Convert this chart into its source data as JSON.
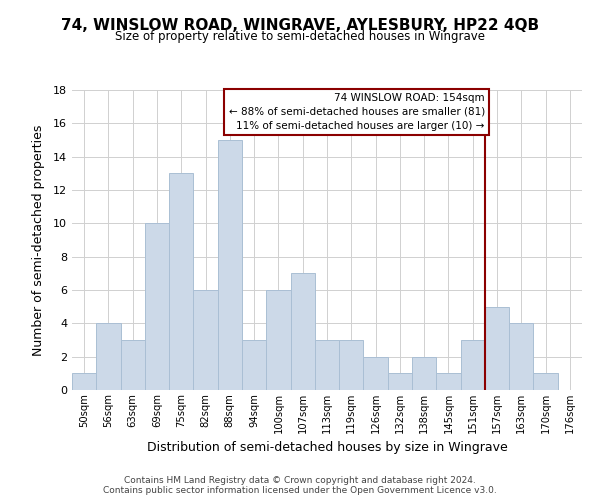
{
  "title": "74, WINSLOW ROAD, WINGRAVE, AYLESBURY, HP22 4QB",
  "subtitle": "Size of property relative to semi-detached houses in Wingrave",
  "xlabel": "Distribution of semi-detached houses by size in Wingrave",
  "ylabel": "Number of semi-detached properties",
  "bar_color": "#ccd9e8",
  "bar_edge_color": "#aabfd4",
  "bins": [
    "50sqm",
    "56sqm",
    "63sqm",
    "69sqm",
    "75sqm",
    "82sqm",
    "88sqm",
    "94sqm",
    "100sqm",
    "107sqm",
    "113sqm",
    "119sqm",
    "126sqm",
    "132sqm",
    "138sqm",
    "145sqm",
    "151sqm",
    "157sqm",
    "163sqm",
    "170sqm",
    "176sqm"
  ],
  "values": [
    1,
    4,
    3,
    10,
    13,
    6,
    15,
    3,
    6,
    7,
    3,
    3,
    2,
    1,
    2,
    1,
    3,
    5,
    4,
    1,
    0
  ],
  "ylim": [
    0,
    18
  ],
  "yticks": [
    0,
    2,
    4,
    6,
    8,
    10,
    12,
    14,
    16,
    18
  ],
  "vline_x_idx": 16.5,
  "vline_color": "#8b0000",
  "ann_title": "74 WINSLOW ROAD: 154sqm",
  "ann_line1": "← 88% of semi-detached houses are smaller (81)",
  "ann_line2": "11% of semi-detached houses are larger (10) →",
  "annotation_box_color": "#ffffff",
  "annotation_box_edge": "#8b0000",
  "footer1": "Contains HM Land Registry data © Crown copyright and database right 2024.",
  "footer2": "Contains public sector information licensed under the Open Government Licence v3.0.",
  "background_color": "#ffffff",
  "grid_color": "#d0d0d0"
}
